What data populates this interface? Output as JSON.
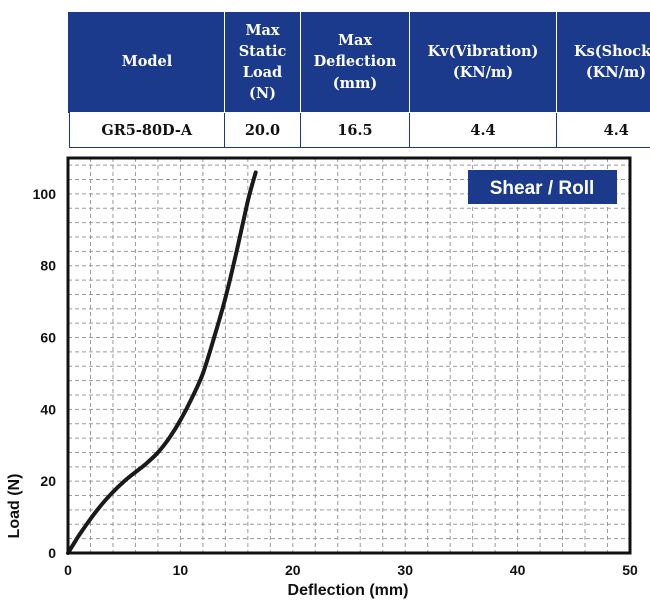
{
  "spec_table": {
    "headers": [
      "Model",
      "Max\nStatic\nLoad\n(N)",
      "Max\nDeflection\n(mm)",
      "Kv(Vibration)\n(KN/m)",
      "Ks(Shock)\n(KN/m)"
    ],
    "row": [
      "GR5-80D-A",
      "20.0",
      "16.5",
      "4.4",
      "4.4"
    ]
  },
  "chart_data": {
    "type": "line",
    "title": "",
    "badge": "Shear / Roll",
    "xlabel": "Deflection (mm)",
    "ylabel": "Load (N)",
    "xlim": [
      0,
      50
    ],
    "ylim": [
      0,
      110
    ],
    "xticks": [
      0,
      10,
      20,
      30,
      40,
      50
    ],
    "yticks": [
      0,
      20,
      40,
      60,
      80,
      100
    ],
    "grid": true,
    "colors": {
      "line": "#1a1a1a",
      "badge": "#1b3a8c",
      "grid": "#9a9a9a",
      "frame": "#111111"
    },
    "series": [
      {
        "x": [
          0,
          0.5,
          1,
          2,
          3,
          4,
          5,
          6,
          7,
          8,
          9,
          10,
          11,
          12,
          13,
          14,
          15,
          16,
          16.7
        ],
        "y": [
          0,
          2.5,
          5,
          9.5,
          13.5,
          17,
          20,
          22.5,
          25,
          28,
          32,
          37,
          43,
          50,
          60,
          71,
          84,
          98,
          106
        ]
      }
    ]
  }
}
